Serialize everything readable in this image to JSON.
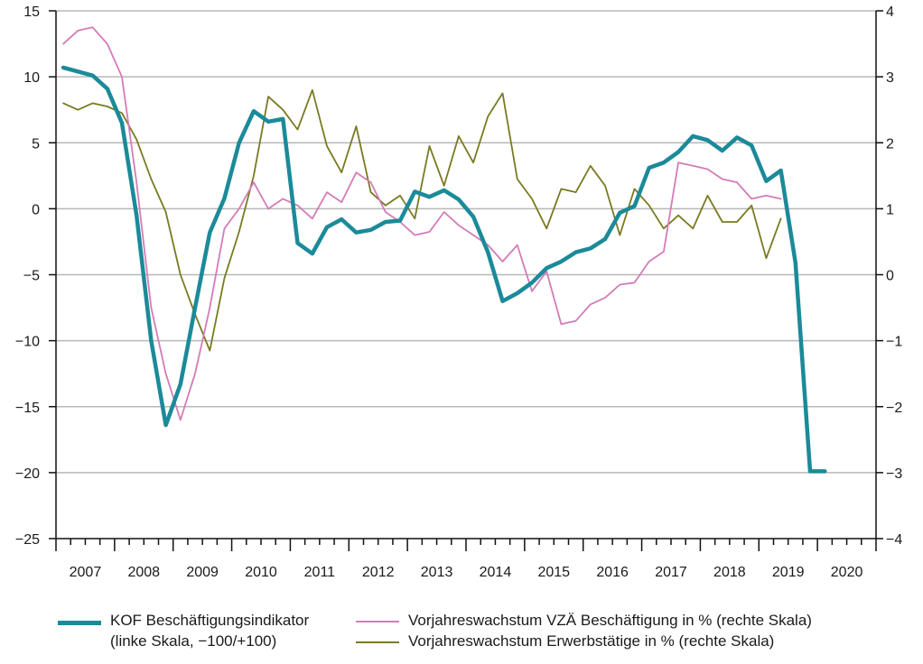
{
  "chart_data": {
    "type": "line",
    "title": "",
    "xlabel": "",
    "ylabel_left": "",
    "ylabel_right": "",
    "x_labels": [
      "2007",
      "2008",
      "2009",
      "2010",
      "2011",
      "2012",
      "2013",
      "2014",
      "2015",
      "2016",
      "2017",
      "2018",
      "2019",
      "2020"
    ],
    "x_range": [
      2007,
      2021
    ],
    "left_axis": {
      "range": [
        -25,
        15
      ],
      "ticks": [
        15,
        10,
        5,
        0,
        -5,
        -10,
        -15,
        -20,
        -25
      ],
      "tick_labels": [
        "15",
        "10",
        "5",
        "0",
        "−5",
        "−10",
        "−15",
        "−20",
        "−25"
      ]
    },
    "right_axis": {
      "range": [
        -4,
        4
      ],
      "ticks": [
        4,
        3,
        2,
        1,
        0,
        -1,
        -2,
        -3,
        -4
      ],
      "tick_labels": [
        "4",
        "3",
        "2",
        "1",
        "0",
        "−1",
        "−2",
        "−3",
        "−4"
      ]
    },
    "grid": "horizontal",
    "legend_position": "bottom",
    "series": [
      {
        "name": "KOF Beschäftigungsindikator",
        "name_line2": "(linke Skala, −100/+100)",
        "axis": "left",
        "color": "#1b8a99",
        "x": [
          2007.125,
          2007.375,
          2007.625,
          2007.875,
          2008.125,
          2008.375,
          2008.625,
          2008.875,
          2009.125,
          2009.375,
          2009.625,
          2009.875,
          2010.125,
          2010.375,
          2010.625,
          2010.875,
          2011.125,
          2011.375,
          2011.625,
          2011.875,
          2012.125,
          2012.375,
          2012.625,
          2012.875,
          2013.125,
          2013.375,
          2013.625,
          2013.875,
          2014.125,
          2014.375,
          2014.625,
          2014.875,
          2015.125,
          2015.375,
          2015.625,
          2015.875,
          2016.125,
          2016.375,
          2016.625,
          2016.875,
          2017.125,
          2017.375,
          2017.625,
          2017.875,
          2018.125,
          2018.375,
          2018.625,
          2018.875,
          2019.125,
          2019.375,
          2019.625,
          2019.875,
          2020.125
        ],
        "values": [
          10.7,
          10.4,
          10.1,
          9.1,
          6.5,
          -0.5,
          -10.0,
          -16.4,
          -13.3,
          -7.5,
          -1.8,
          0.8,
          5.0,
          7.4,
          6.6,
          6.8,
          -2.6,
          -3.4,
          -1.4,
          -0.8,
          -1.8,
          -1.6,
          -1.0,
          -0.9,
          1.3,
          0.9,
          1.4,
          0.7,
          -0.6,
          -3.3,
          -7.0,
          -6.4,
          -5.6,
          -4.5,
          -4.0,
          -3.3,
          -3.0,
          -2.3,
          -0.3,
          0.2,
          3.1,
          3.5,
          4.3,
          5.5,
          5.2,
          4.4,
          5.4,
          4.8,
          2.1,
          2.9,
          -4.1,
          -19.9,
          -19.9
        ]
      },
      {
        "name": "Vorjahreswachstum VZÄ Beschäftigung in % (rechte Skala)",
        "axis": "right",
        "color": "#d47cb8",
        "x": [
          2007.125,
          2007.375,
          2007.625,
          2007.875,
          2008.125,
          2008.375,
          2008.625,
          2008.875,
          2009.125,
          2009.375,
          2009.625,
          2009.875,
          2010.125,
          2010.375,
          2010.625,
          2010.875,
          2011.125,
          2011.375,
          2011.625,
          2011.875,
          2012.125,
          2012.375,
          2012.625,
          2012.875,
          2013.125,
          2013.375,
          2013.625,
          2013.875,
          2014.125,
          2014.375,
          2014.625,
          2014.875,
          2015.125,
          2015.375,
          2015.625,
          2015.875,
          2016.125,
          2016.375,
          2016.625,
          2016.875,
          2017.125,
          2017.375,
          2017.625,
          2017.875,
          2018.125,
          2018.375,
          2018.625,
          2018.875,
          2019.125,
          2019.375
        ],
        "values": [
          3.5,
          3.7,
          3.75,
          3.5,
          3.0,
          1.4,
          -0.5,
          -1.5,
          -2.2,
          -1.5,
          -0.5,
          0.7,
          1.0,
          1.4,
          1.0,
          1.15,
          1.05,
          0.85,
          1.25,
          1.1,
          1.55,
          1.4,
          0.95,
          0.8,
          0.6,
          0.65,
          0.95,
          0.75,
          0.6,
          0.45,
          0.2,
          0.45,
          -0.25,
          0.05,
          -0.75,
          -0.7,
          -0.45,
          -0.35,
          -0.15,
          -0.12,
          0.2,
          0.35,
          1.7,
          1.65,
          1.6,
          1.45,
          1.4,
          1.15,
          1.2,
          1.15
        ]
      },
      {
        "name": "Vorjahreswachstum Erwerbstätige in % (rechte Skala)",
        "axis": "right",
        "color": "#7a7a22",
        "x": [
          2007.125,
          2007.375,
          2007.625,
          2007.875,
          2008.125,
          2008.375,
          2008.625,
          2008.875,
          2009.125,
          2009.375,
          2009.625,
          2009.875,
          2010.125,
          2010.375,
          2010.625,
          2010.875,
          2011.125,
          2011.375,
          2011.625,
          2011.875,
          2012.125,
          2012.375,
          2012.625,
          2012.875,
          2013.125,
          2013.375,
          2013.625,
          2013.875,
          2014.125,
          2014.375,
          2014.625,
          2014.875,
          2015.125,
          2015.375,
          2015.625,
          2015.875,
          2016.125,
          2016.375,
          2016.625,
          2016.875,
          2017.125,
          2017.375,
          2017.625,
          2017.875,
          2018.125,
          2018.375,
          2018.625,
          2018.875,
          2019.125,
          2019.375
        ],
        "values": [
          2.6,
          2.5,
          2.6,
          2.55,
          2.45,
          2.05,
          1.45,
          0.95,
          0.0,
          -0.6,
          -1.15,
          -0.05,
          0.65,
          1.5,
          2.7,
          2.5,
          2.2,
          2.8,
          1.95,
          1.55,
          2.25,
          1.25,
          1.05,
          1.2,
          0.85,
          1.95,
          1.35,
          2.1,
          1.7,
          2.4,
          2.75,
          1.45,
          1.15,
          0.7,
          1.3,
          1.25,
          1.65,
          1.35,
          0.6,
          1.3,
          1.05,
          0.7,
          0.9,
          0.7,
          1.2,
          0.8,
          0.8,
          1.05,
          0.25,
          0.85
        ]
      }
    ]
  }
}
